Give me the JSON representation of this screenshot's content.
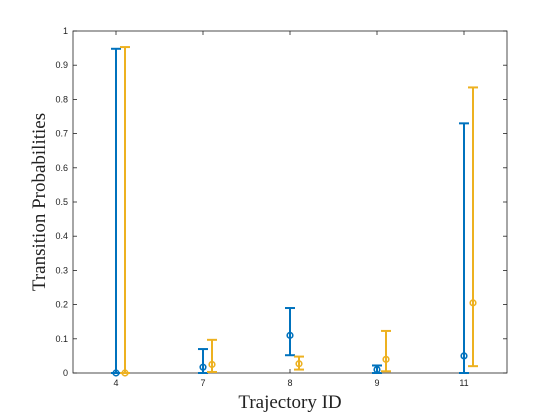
{
  "chart_data": {
    "type": "errorbar",
    "xlabel": "Trajectory ID",
    "ylabel": "Transition Probabilities",
    "ylim": [
      0,
      1
    ],
    "y_ticks": [
      "0",
      "0.1",
      "0.2",
      "0.3",
      "0.4",
      "0.5",
      "0.6",
      "0.7",
      "0.8",
      "0.9",
      "1"
    ],
    "categories": [
      "4",
      "7",
      "8",
      "9",
      "11"
    ],
    "grid": false,
    "series": [
      {
        "color": "#0072BD",
        "points": [
          {
            "x": "4",
            "y": 0.0,
            "low": 0.0,
            "high": 0.948
          },
          {
            "x": "7",
            "y": 0.017,
            "low": 0.0,
            "high": 0.07
          },
          {
            "x": "8",
            "y": 0.11,
            "low": 0.052,
            "high": 0.19
          },
          {
            "x": "9",
            "y": 0.01,
            "low": 0.0,
            "high": 0.022
          },
          {
            "x": "11",
            "y": 0.05,
            "low": 0.0,
            "high": 0.73
          }
        ]
      },
      {
        "color": "#EDB120",
        "points": [
          {
            "x": "4",
            "y": 0.0,
            "low": 0.0,
            "high": 0.953
          },
          {
            "x": "7",
            "y": 0.025,
            "low": 0.003,
            "high": 0.097
          },
          {
            "x": "8",
            "y": 0.027,
            "low": 0.01,
            "high": 0.048
          },
          {
            "x": "9",
            "y": 0.04,
            "low": 0.005,
            "high": 0.123
          },
          {
            "x": "11",
            "y": 0.205,
            "low": 0.02,
            "high": 0.835
          }
        ]
      }
    ]
  }
}
